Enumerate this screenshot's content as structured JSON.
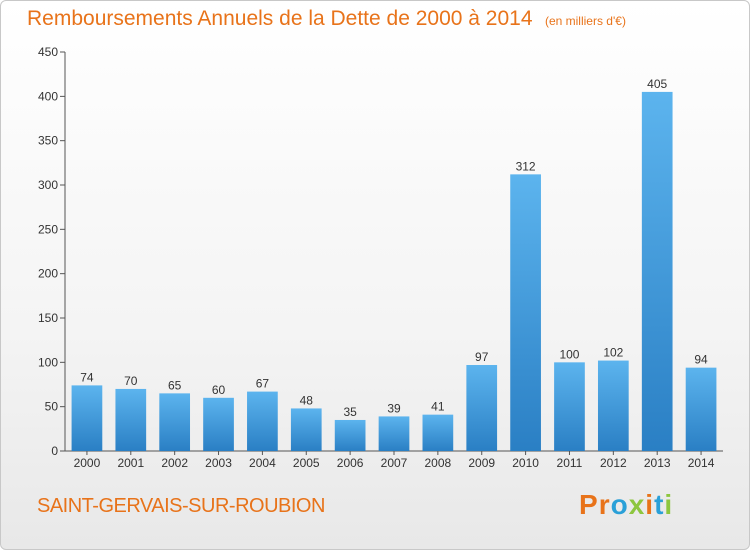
{
  "chart_data": {
    "type": "bar",
    "title": "Remboursements Annuels de la Dette de 2000 à 2014",
    "subtitle": "(en milliers d'€)",
    "categories": [
      "2000",
      "2001",
      "2002",
      "2003",
      "2004",
      "2005",
      "2006",
      "2007",
      "2008",
      "2009",
      "2010",
      "2011",
      "2012",
      "2013",
      "2014"
    ],
    "values": [
      74,
      70,
      65,
      60,
      67,
      48,
      35,
      39,
      41,
      97,
      312,
      100,
      102,
      405,
      94
    ],
    "ylim": [
      0,
      450
    ],
    "yticks": [
      0,
      50,
      100,
      150,
      200,
      250,
      300,
      350,
      400,
      450
    ],
    "grid": false,
    "bar_color": "#3d94d6"
  },
  "commune": "SAINT-GERVAIS-SUR-ROUBION",
  "logo": {
    "text": "Proxiti",
    "letters": [
      {
        "ch": "P",
        "color": "#e8731a"
      },
      {
        "ch": "r",
        "color": "#e8731a"
      },
      {
        "ch": "o",
        "color": "#2aa0d8"
      },
      {
        "ch": "x",
        "color": "#8dc63f"
      },
      {
        "ch": "i",
        "color": "#e8731a"
      },
      {
        "ch": "t",
        "color": "#2aa0d8"
      },
      {
        "ch": "i",
        "color": "#8dc63f"
      }
    ]
  }
}
